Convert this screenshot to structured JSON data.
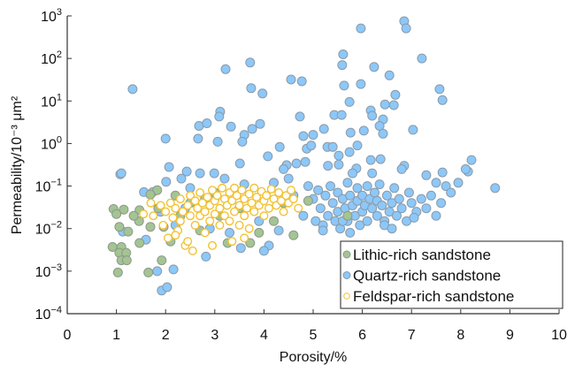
{
  "chart_data": {
    "type": "scatter",
    "title": "",
    "xlabel": "Porosity/%",
    "ylabel": "Permeability/10⁻³ μm²",
    "xlim": [
      0,
      10
    ],
    "ylim": [
      0.0001,
      1000
    ],
    "yscale": "log",
    "grid": false,
    "legend_position": "bottom-right",
    "x_ticks": [
      "0",
      "1",
      "2",
      "3",
      "4",
      "5",
      "6",
      "7",
      "8",
      "9",
      "10"
    ],
    "y_ticks": [
      {
        "base": "10",
        "exp": "3"
      },
      {
        "base": "10",
        "exp": "2"
      },
      {
        "base": "10",
        "exp": "1"
      },
      {
        "base": "10",
        "exp": "0"
      },
      {
        "base": "10",
        "exp": "−1"
      },
      {
        "base": "10",
        "exp": "−2"
      },
      {
        "base": "10",
        "exp": "−3"
      },
      {
        "base": "10",
        "exp": "−4"
      }
    ],
    "series": [
      {
        "name": "Quartz-rich sandstone",
        "color": "#8cc8fa",
        "stroke": "#8c9aa6",
        "marker": "filled-circle",
        "points": [
          [
            6.85,
            750
          ],
          [
            6.89,
            510
          ],
          [
            5.97,
            510
          ],
          [
            7.21,
            100
          ],
          [
            5.61,
            125
          ],
          [
            5.59,
            70
          ],
          [
            6.24,
            63
          ],
          [
            6.55,
            40
          ],
          [
            1.33,
            19
          ],
          [
            3.22,
            56
          ],
          [
            3.72,
            80
          ],
          [
            3.74,
            20
          ],
          [
            3.97,
            15
          ],
          [
            4.55,
            32
          ],
          [
            4.77,
            29
          ],
          [
            5.63,
            23
          ],
          [
            5.97,
            25
          ],
          [
            7.57,
            19
          ],
          [
            7.63,
            10.5
          ],
          [
            6.67,
            14
          ],
          [
            6.46,
            8.3
          ],
          [
            6.64,
            8
          ],
          [
            5.74,
            9.5
          ],
          [
            6.17,
            6
          ],
          [
            6.2,
            4.5
          ],
          [
            6.42,
            3.7
          ],
          [
            6.35,
            2.6
          ],
          [
            6.42,
            1.7
          ],
          [
            7.03,
            2.1
          ],
          [
            5.43,
            4.7
          ],
          [
            5.58,
            4.7
          ],
          [
            4.73,
            4.3
          ],
          [
            3.11,
            5.6
          ],
          [
            3.09,
            4.3
          ],
          [
            2.68,
            2.6
          ],
          [
            2.84,
            3
          ],
          [
            3.33,
            2.5
          ],
          [
            3.92,
            2.9
          ],
          [
            3.76,
            2.2
          ],
          [
            3.6,
            1.6
          ],
          [
            3.56,
            1.1
          ],
          [
            2.0,
            1.3
          ],
          [
            2.66,
            1.3
          ],
          [
            3.06,
            1.1
          ],
          [
            4.8,
            1.5
          ],
          [
            5.0,
            1.6
          ],
          [
            5.22,
            2.2
          ],
          [
            5.76,
            1.8
          ],
          [
            6.03,
            2
          ],
          [
            4.87,
            0.76
          ],
          [
            4.96,
            0.9
          ],
          [
            5.29,
            0.83
          ],
          [
            5.4,
            0.83
          ],
          [
            5.9,
            0.9
          ],
          [
            4.32,
            0.83
          ],
          [
            4.08,
            0.5
          ],
          [
            3.51,
            0.34
          ],
          [
            2.07,
            0.28
          ],
          [
            2.43,
            0.22
          ],
          [
            2.99,
            0.2
          ],
          [
            4.46,
            0.31
          ],
          [
            4.66,
            0.34
          ],
          [
            4.84,
            0.37
          ],
          [
            5.52,
            0.52
          ],
          [
            5.52,
            0.32
          ],
          [
            5.74,
            0.63
          ],
          [
            6.17,
            0.41
          ],
          [
            6.37,
            0.43
          ],
          [
            6.85,
            0.3
          ],
          [
            5.88,
            0.26
          ],
          [
            8.22,
            0.41
          ],
          [
            8.15,
            0.22
          ],
          [
            7.63,
            0.21
          ],
          [
            1.08,
            0.19
          ],
          [
            1.56,
            0.072
          ],
          [
            1.74,
            0.072
          ],
          [
            2.01,
            0.126
          ],
          [
            2.32,
            0.15
          ],
          [
            1.13,
            0.0085
          ],
          [
            1.6,
            0.0055
          ],
          [
            1.83,
            0.001
          ],
          [
            2.16,
            0.0011
          ],
          [
            1.92,
            0.00035
          ],
          [
            2.03,
            0.00042
          ],
          [
            2.82,
            0.0022
          ],
          [
            3.53,
            0.0035
          ],
          [
            1.1,
            0.2
          ],
          [
            2.5,
            0.09
          ],
          [
            2.9,
            0.01
          ],
          [
            3.3,
            0.008
          ],
          [
            3.6,
            0.11
          ],
          [
            3.9,
            0.015
          ],
          [
            4.1,
            0.004
          ],
          [
            4.3,
            0.009
          ],
          [
            4.2,
            0.12
          ],
          [
            4.5,
            0.15
          ],
          [
            4.6,
            0.06
          ],
          [
            4.8,
            0.02
          ],
          [
            4.9,
            0.1
          ],
          [
            2.4,
            0.03
          ],
          [
            3.0,
            0.05
          ],
          [
            3.2,
            0.15
          ],
          [
            2.7,
            0.2
          ],
          [
            1.9,
            0.025
          ],
          [
            2.2,
            0.012
          ],
          [
            4.0,
            0.003
          ],
          [
            4.4,
            0.25
          ],
          [
            5.0,
            0.05
          ],
          [
            5.05,
            0.015
          ],
          [
            5.1,
            0.08
          ],
          [
            5.15,
            0.03
          ],
          [
            5.2,
            0.012
          ],
          [
            5.25,
            0.06
          ],
          [
            5.3,
            0.02
          ],
          [
            5.35,
            0.1
          ],
          [
            5.4,
            0.04
          ],
          [
            5.45,
            0.015
          ],
          [
            5.5,
            0.07
          ],
          [
            5.5,
            0.025
          ],
          [
            5.55,
            0.01
          ],
          [
            5.6,
            0.05
          ],
          [
            5.65,
            0.03
          ],
          [
            5.7,
            0.12
          ],
          [
            5.7,
            0.015
          ],
          [
            5.75,
            0.06
          ],
          [
            5.8,
            0.035
          ],
          [
            5.85,
            0.02
          ],
          [
            5.9,
            0.09
          ],
          [
            5.9,
            0.045
          ],
          [
            5.95,
            0.012
          ],
          [
            6.0,
            0.06
          ],
          [
            6.0,
            0.025
          ],
          [
            6.05,
            0.035
          ],
          [
            6.1,
            0.1
          ],
          [
            6.1,
            0.015
          ],
          [
            6.15,
            0.05
          ],
          [
            6.2,
            0.03
          ],
          [
            6.25,
            0.07
          ],
          [
            6.3,
            0.02
          ],
          [
            6.3,
            0.045
          ],
          [
            6.35,
            0.11
          ],
          [
            6.4,
            0.035
          ],
          [
            6.45,
            0.015
          ],
          [
            6.5,
            0.06
          ],
          [
            6.55,
            0.025
          ],
          [
            6.6,
            0.04
          ],
          [
            6.65,
            0.09
          ],
          [
            6.7,
            0.02
          ],
          [
            6.75,
            0.05
          ],
          [
            6.8,
            0.03
          ],
          [
            6.9,
            0.015
          ],
          [
            6.95,
            0.07
          ],
          [
            7.0,
            0.04
          ],
          [
            7.1,
            0.025
          ],
          [
            7.2,
            0.05
          ],
          [
            7.3,
            0.03
          ],
          [
            7.4,
            0.06
          ],
          [
            7.5,
            0.02
          ],
          [
            7.6,
            0.04
          ],
          [
            7.7,
            0.1
          ],
          [
            7.8,
            0.07
          ],
          [
            7.95,
            0.12
          ],
          [
            8.1,
            0.25
          ],
          [
            8.7,
            0.09
          ],
          [
            7.3,
            0.18
          ],
          [
            7.5,
            0.12
          ],
          [
            6.8,
            0.25
          ],
          [
            6.2,
            0.2
          ],
          [
            5.8,
            0.2
          ],
          [
            5.3,
            0.3
          ],
          [
            5.6,
            0.015
          ],
          [
            6.45,
            0.012
          ],
          [
            7.05,
            0.018
          ],
          [
            5.2,
            0.009
          ],
          [
            5.75,
            0.008
          ],
          [
            6.6,
            0.01
          ]
        ]
      },
      {
        "name": "Lithic-rich sandstone",
        "color": "#a4c494",
        "stroke": "#8c9a88",
        "marker": "filled-circle",
        "points": [
          [
            0.94,
            0.029
          ],
          [
            1.15,
            0.028
          ],
          [
            1.0,
            0.022
          ],
          [
            1.47,
            0.027
          ],
          [
            1.06,
            0.011
          ],
          [
            1.24,
            0.0085
          ],
          [
            1.46,
            0.015
          ],
          [
            1.69,
            0.011
          ],
          [
            1.47,
            0.0046
          ],
          [
            0.92,
            0.0037
          ],
          [
            1.1,
            0.0037
          ],
          [
            1.06,
            0.0027
          ],
          [
            1.2,
            0.0027
          ],
          [
            1.1,
            0.0018
          ],
          [
            1.21,
            0.0018
          ],
          [
            1.03,
            0.00093
          ],
          [
            1.92,
            0.0018
          ],
          [
            1.65,
            0.00093
          ],
          [
            1.83,
            0.08
          ],
          [
            1.69,
            0.063
          ],
          [
            3.26,
            0.0046
          ],
          [
            3.72,
            0.0046
          ],
          [
            1.96,
            0.011
          ],
          [
            2.1,
            0.005
          ],
          [
            2.2,
            0.06
          ],
          [
            2.5,
            0.04
          ],
          [
            2.8,
            0.05
          ],
          [
            3.1,
            0.02
          ],
          [
            3.5,
            0.03
          ],
          [
            3.9,
            0.008
          ],
          [
            4.2,
            0.015
          ],
          [
            4.6,
            0.007
          ],
          [
            4.9,
            0.045
          ],
          [
            5.7,
            0.02
          ],
          [
            2.3,
            0.02
          ],
          [
            2.7,
            0.009
          ],
          [
            4.4,
            0.04
          ],
          [
            1.35,
            0.02
          ],
          [
            1.85,
            0.03
          ],
          [
            3.0,
            0.07
          ]
        ]
      },
      {
        "name": "Feldspar-rich sandstone",
        "color": "#ffffff",
        "stroke": "#f2c232",
        "marker": "open-circle",
        "points": [
          [
            1.55,
            0.022
          ],
          [
            1.75,
            0.02
          ],
          [
            1.9,
            0.035
          ],
          [
            1.95,
            0.012
          ],
          [
            2.0,
            0.025
          ],
          [
            2.05,
            0.006
          ],
          [
            2.1,
            0.04
          ],
          [
            2.15,
            0.018
          ],
          [
            2.2,
            0.03
          ],
          [
            2.25,
            0.009
          ],
          [
            2.3,
            0.05
          ],
          [
            2.3,
            0.015
          ],
          [
            2.35,
            0.025
          ],
          [
            2.4,
            0.004
          ],
          [
            2.45,
            0.035
          ],
          [
            2.5,
            0.02
          ],
          [
            2.5,
            0.06
          ],
          [
            2.55,
            0.003
          ],
          [
            2.6,
            0.045
          ],
          [
            2.6,
            0.012
          ],
          [
            2.65,
            0.03
          ],
          [
            2.7,
            0.07
          ],
          [
            2.7,
            0.02
          ],
          [
            2.75,
            0.04
          ],
          [
            2.8,
            0.025
          ],
          [
            2.8,
            0.008
          ],
          [
            2.85,
            0.055
          ],
          [
            2.9,
            0.035
          ],
          [
            2.9,
            0.015
          ],
          [
            2.95,
            0.08
          ],
          [
            3.0,
            0.045
          ],
          [
            3.0,
            0.022
          ],
          [
            3.05,
            0.06
          ],
          [
            3.1,
            0.03
          ],
          [
            3.1,
            0.012
          ],
          [
            3.15,
            0.09
          ],
          [
            3.2,
            0.05
          ],
          [
            3.2,
            0.02
          ],
          [
            3.25,
            0.035
          ],
          [
            3.3,
            0.07
          ],
          [
            3.3,
            0.015
          ],
          [
            3.35,
            0.045
          ],
          [
            3.4,
            0.025
          ],
          [
            3.4,
            0.09
          ],
          [
            3.45,
            0.06
          ],
          [
            3.5,
            0.035
          ],
          [
            3.5,
            0.012
          ],
          [
            3.55,
            0.08
          ],
          [
            3.6,
            0.05
          ],
          [
            3.6,
            0.02
          ],
          [
            3.65,
            0.03
          ],
          [
            3.7,
            0.065
          ],
          [
            3.7,
            0.01
          ],
          [
            3.75,
            0.04
          ],
          [
            3.8,
            0.09
          ],
          [
            3.8,
            0.025
          ],
          [
            3.85,
            0.055
          ],
          [
            3.9,
            0.035
          ],
          [
            3.95,
            0.075
          ],
          [
            4.0,
            0.045
          ],
          [
            4.0,
            0.02
          ],
          [
            4.05,
            0.06
          ],
          [
            4.1,
            0.03
          ],
          [
            4.15,
            0.085
          ],
          [
            4.2,
            0.05
          ],
          [
            4.25,
            0.035
          ],
          [
            4.3,
            0.07
          ],
          [
            4.35,
            0.045
          ],
          [
            4.4,
            0.025
          ],
          [
            4.45,
            0.06
          ],
          [
            4.5,
            0.04
          ],
          [
            4.6,
            0.05
          ],
          [
            4.7,
            0.03
          ],
          [
            4.55,
            0.08
          ],
          [
            2.2,
            0.007
          ],
          [
            2.45,
            0.005
          ],
          [
            3.35,
            0.005
          ],
          [
            1.7,
            0.04
          ],
          [
            2.95,
            0.004
          ],
          [
            3.6,
            0.006
          ]
        ]
      }
    ],
    "legend_order": [
      "Lithic-rich sandstone",
      "Quartz-rich sandstone",
      "Feldspar-rich sandstone"
    ]
  }
}
